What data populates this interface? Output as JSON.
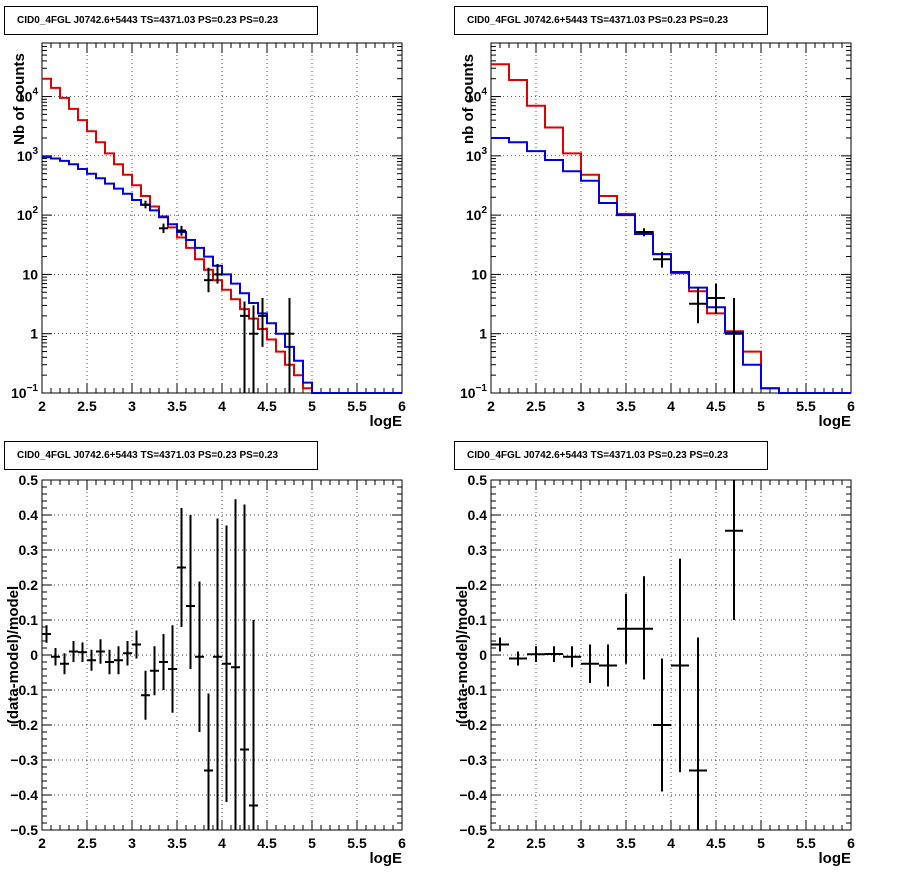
{
  "chart_data": [
    {
      "type": "line",
      "title": "CID0_4FGL J0742.6+5443 TS=4371.03 PS=0.23 PS=0.23",
      "xlabel": "logE",
      "ylabel": "Nb of counts",
      "yscale": "log",
      "xlim": [
        2,
        6
      ],
      "ylim": [
        0.1,
        80000
      ],
      "x_ticks": [
        "2",
        "2.5",
        "3",
        "3.5",
        "4",
        "4.5",
        "5",
        "5.5",
        "6"
      ],
      "y_ticks": [
        {
          "value": 0.1,
          "base": "10",
          "exp": "−1"
        },
        {
          "value": 1,
          "label": "1"
        },
        {
          "value": 10,
          "label": "10"
        },
        {
          "value": 100,
          "base": "10",
          "exp": "2"
        },
        {
          "value": 1000,
          "base": "10",
          "exp": "3"
        },
        {
          "value": 10000,
          "base": "10",
          "exp": "4"
        }
      ],
      "grid": true,
      "bin_edges": [
        2.0,
        2.1,
        2.2,
        2.3,
        2.4,
        2.5,
        2.6,
        2.7,
        2.8,
        2.9,
        3.0,
        3.1,
        3.2,
        3.3,
        3.4,
        3.5,
        3.6,
        3.7,
        3.8,
        3.9,
        4.0,
        4.1,
        4.2,
        4.3,
        4.4,
        4.5,
        4.6,
        4.7,
        4.8,
        4.9,
        5.0,
        5.1,
        5.2,
        5.3,
        5.4,
        5.5,
        5.6,
        5.7,
        5.8,
        5.9,
        6.0
      ],
      "series": [
        {
          "color": "#e00000",
          "style": "step",
          "values": [
            20000,
            14000,
            9500,
            6200,
            4000,
            2600,
            1700,
            1100,
            720,
            480,
            320,
            210,
            140,
            95,
            62,
            42,
            28,
            18,
            12,
            8,
            5.5,
            3.8,
            2.6,
            1.8,
            1.2,
            0.8,
            0.5,
            0.3,
            0.2,
            0.12,
            0.1,
            0.1,
            0.1,
            0.1,
            0.1,
            0.1,
            0.1,
            0.1,
            0.1,
            0.1
          ]
        },
        {
          "color": "#0000e0",
          "style": "step",
          "values": [
            950,
            900,
            820,
            720,
            600,
            500,
            420,
            340,
            280,
            230,
            180,
            150,
            120,
            92,
            70,
            52,
            38,
            28,
            20,
            14,
            10,
            7,
            4.8,
            3.3,
            2.2,
            1.5,
            1.0,
            0.6,
            0.35,
            0.15,
            0.1,
            0.1,
            0.1,
            0.1,
            0.1,
            0.1,
            0.1,
            0.1,
            0.1,
            0.1
          ]
        }
      ],
      "points": {
        "color": "#000000",
        "x": [
          3.15,
          3.35,
          3.55,
          3.85,
          3.95,
          4.25,
          4.35,
          4.45,
          4.75
        ],
        "y": [
          150,
          60,
          55,
          8,
          10,
          2,
          1,
          2,
          1
        ],
        "xerr": 0.05,
        "ylow": [
          130,
          50,
          45,
          5,
          7,
          0.1,
          0.1,
          0.6,
          0.1
        ],
        "yhigh": [
          175,
          72,
          66,
          13,
          15,
          3.5,
          3,
          4,
          4
        ]
      }
    },
    {
      "type": "line",
      "title": "CID0_4FGL J0742.6+5443 TS=4371.03 PS=0.23 PS=0.23",
      "xlabel": "logE",
      "ylabel": "nb of counts",
      "yscale": "log",
      "xlim": [
        2,
        6
      ],
      "ylim": [
        0.1,
        80000
      ],
      "x_ticks": [
        "2",
        "2.5",
        "3",
        "3.5",
        "4",
        "4.5",
        "5",
        "5.5",
        "6"
      ],
      "y_ticks": [
        {
          "value": 0.1,
          "base": "10",
          "exp": "−1"
        },
        {
          "value": 1,
          "label": "1"
        },
        {
          "value": 10,
          "label": "10"
        },
        {
          "value": 100,
          "base": "10",
          "exp": "2"
        },
        {
          "value": 1000,
          "base": "10",
          "exp": "3"
        },
        {
          "value": 10000,
          "base": "10",
          "exp": "4"
        }
      ],
      "grid": true,
      "bin_edges": [
        2.0,
        2.2,
        2.4,
        2.6,
        2.8,
        3.0,
        3.2,
        3.4,
        3.6,
        3.8,
        4.0,
        4.2,
        4.4,
        4.6,
        4.8,
        5.0,
        5.2,
        5.4,
        5.6,
        5.8,
        6.0
      ],
      "series": [
        {
          "color": "#e00000",
          "style": "step",
          "values": [
            35000,
            19000,
            7000,
            3000,
            1100,
            480,
            210,
            105,
            52,
            22,
            10.5,
            5.2,
            2.2,
            1.1,
            0.5,
            0.12,
            0.1,
            0.1,
            0.1,
            0.1
          ]
        },
        {
          "color": "#0000e0",
          "style": "step",
          "values": [
            2000,
            1700,
            1200,
            850,
            550,
            380,
            160,
            100,
            48,
            22,
            11,
            6,
            2.8,
            1.05,
            0.3,
            0.12,
            0.1,
            0.1,
            0.1,
            0.1
          ]
        }
      ],
      "points": {
        "color": "#000000",
        "x": [
          3.7,
          3.9,
          4.3,
          4.5,
          4.7
        ],
        "y": [
          52,
          18,
          3.2,
          4,
          1
        ],
        "xerr": 0.1,
        "ylow": [
          44,
          13,
          1.5,
          2.2,
          0.1
        ],
        "yhigh": [
          60,
          24,
          6,
          7,
          4
        ]
      }
    },
    {
      "type": "scatter",
      "title": "CID0_4FGL J0742.6+5443 TS=4371.03 PS=0.23 PS=0.23",
      "xlabel": "logE",
      "ylabel": "(data-model)/model",
      "yscale": "linear",
      "xlim": [
        2,
        6
      ],
      "ylim": [
        -0.5,
        0.5
      ],
      "x_ticks": [
        "2",
        "2.5",
        "3",
        "3.5",
        "4",
        "4.5",
        "5",
        "5.5",
        "6"
      ],
      "y_ticks": [
        {
          "value": -0.5,
          "label": "−0.5"
        },
        {
          "value": -0.4,
          "label": "−0.4"
        },
        {
          "value": -0.3,
          "label": "−0.3"
        },
        {
          "value": -0.2,
          "label": "−0.2"
        },
        {
          "value": -0.1,
          "label": "−0.1"
        },
        {
          "value": 0,
          "label": "0"
        },
        {
          "value": 0.1,
          "label": "0.1"
        },
        {
          "value": 0.2,
          "label": "0.2"
        },
        {
          "value": 0.3,
          "label": "0.3"
        },
        {
          "value": 0.4,
          "label": "0.4"
        },
        {
          "value": 0.5,
          "label": "0.5"
        }
      ],
      "grid": true,
      "points": {
        "color": "#000000",
        "x": [
          2.05,
          2.15,
          2.25,
          2.35,
          2.45,
          2.55,
          2.65,
          2.75,
          2.85,
          2.95,
          3.05,
          3.15,
          3.25,
          3.35,
          3.45,
          3.55,
          3.65,
          3.75,
          3.85,
          3.95,
          4.05,
          4.15,
          4.25,
          4.35
        ],
        "y": [
          0.06,
          -0.005,
          -0.025,
          0.01,
          0.008,
          -0.015,
          0.01,
          -0.02,
          -0.015,
          0.005,
          0.03,
          -0.115,
          -0.045,
          -0.02,
          -0.04,
          0.25,
          0.14,
          -0.005,
          -0.33,
          -0.005,
          -0.025,
          -0.035,
          -0.27,
          -0.43
        ],
        "xerr": 0.05,
        "ylow": [
          0.035,
          -0.03,
          -0.055,
          -0.02,
          -0.02,
          -0.045,
          -0.025,
          -0.055,
          -0.055,
          -0.03,
          -0.01,
          -0.185,
          -0.115,
          -0.1,
          -0.165,
          0.08,
          -0.04,
          -0.22,
          -0.5,
          -0.5,
          -0.42,
          -0.5,
          -0.5,
          -0.5
        ],
        "yhigh": [
          0.085,
          0.02,
          0.005,
          0.04,
          0.036,
          0.015,
          0.045,
          0.015,
          0.025,
          0.04,
          0.07,
          -0.045,
          0.025,
          0.06,
          0.085,
          0.42,
          0.4,
          0.21,
          -0.11,
          0.39,
          0.37,
          0.445,
          0.43,
          0.1
        ]
      }
    },
    {
      "type": "scatter",
      "title": "CID0_4FGL J0742.6+5443 TS=4371.03 PS=0.23 PS=0.23",
      "xlabel": "logE",
      "ylabel": "(data-model)/model",
      "yscale": "linear",
      "xlim": [
        2,
        6
      ],
      "ylim": [
        -0.5,
        0.5
      ],
      "x_ticks": [
        "2",
        "2.5",
        "3",
        "3.5",
        "4",
        "4.5",
        "5",
        "5.5",
        "6"
      ],
      "y_ticks": [
        {
          "value": -0.5,
          "label": "−0.5"
        },
        {
          "value": -0.4,
          "label": "−0.4"
        },
        {
          "value": -0.3,
          "label": "−0.3"
        },
        {
          "value": -0.2,
          "label": "−0.2"
        },
        {
          "value": -0.1,
          "label": "−0.1"
        },
        {
          "value": 0,
          "label": "0"
        },
        {
          "value": 0.1,
          "label": "0.1"
        },
        {
          "value": 0.2,
          "label": "0.2"
        },
        {
          "value": 0.3,
          "label": "0.3"
        },
        {
          "value": 0.4,
          "label": "0.4"
        },
        {
          "value": 0.5,
          "label": "0.5"
        }
      ],
      "grid": true,
      "points": {
        "color": "#000000",
        "x": [
          2.1,
          2.3,
          2.5,
          2.7,
          2.9,
          3.1,
          3.3,
          3.5,
          3.7,
          3.9,
          4.1,
          4.3,
          4.7
        ],
        "y": [
          0.03,
          -0.01,
          0.002,
          0.003,
          -0.005,
          -0.025,
          -0.03,
          0.075,
          0.075,
          -0.2,
          -0.03,
          -0.33,
          0.355
        ],
        "xerr": 0.1,
        "ylow": [
          0.01,
          -0.03,
          -0.02,
          -0.02,
          -0.035,
          -0.08,
          -0.09,
          -0.025,
          -0.07,
          -0.39,
          -0.335,
          -0.5,
          0.1
        ],
        "yhigh": [
          0.05,
          0.01,
          0.025,
          0.025,
          0.025,
          0.03,
          0.03,
          0.175,
          0.225,
          -0.01,
          0.275,
          0.05,
          0.5
        ]
      }
    }
  ]
}
